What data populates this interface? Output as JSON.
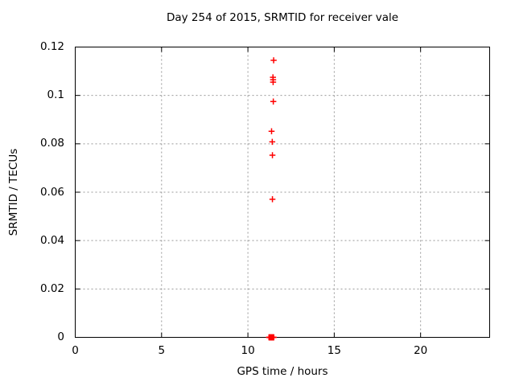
{
  "window": {
    "background": "#ffffff"
  },
  "chart_data": {
    "type": "scatter",
    "title": "Day 254 of 2015, SRMTID for receiver vale",
    "xlabel": "GPS time / hours",
    "ylabel": "SRMTID / TECUs",
    "xlim": [
      0,
      24
    ],
    "ylim": [
      0,
      0.12
    ],
    "xticks": {
      "values": [
        0,
        5,
        10,
        15,
        20
      ],
      "labels": [
        "0",
        "5",
        "10",
        "15",
        "20"
      ]
    },
    "yticks": {
      "values": [
        0,
        0.02,
        0.04,
        0.06,
        0.08,
        0.1,
        0.12
      ],
      "labels": [
        "0",
        "0.02",
        "0.04",
        "0.06",
        "0.08",
        "0.1",
        "0.12"
      ]
    },
    "grid": true,
    "legend": "none",
    "marker": "plus",
    "colors": {
      "points": "#ff0000",
      "axis": "#000000",
      "grid": "#999999"
    },
    "series": [
      {
        "name": "SRMTID",
        "points": [
          [
            11.49,
            0.1145
          ],
          [
            11.45,
            0.1075
          ],
          [
            11.46,
            0.1065
          ],
          [
            11.46,
            0.1055
          ],
          [
            11.47,
            0.0975
          ],
          [
            11.37,
            0.0852
          ],
          [
            11.41,
            0.0808
          ],
          [
            11.42,
            0.0753
          ],
          [
            11.42,
            0.0571
          ],
          [
            11.22,
            0.0
          ],
          [
            11.24,
            0.0
          ],
          [
            11.26,
            0.0
          ],
          [
            11.28,
            0.0
          ],
          [
            11.3,
            0.0
          ],
          [
            11.32,
            0.0
          ],
          [
            11.34,
            0.0
          ],
          [
            11.36,
            0.0
          ],
          [
            11.38,
            0.0
          ],
          [
            11.4,
            0.0
          ],
          [
            11.42,
            0.0
          ],
          [
            11.44,
            0.0
          ],
          [
            11.46,
            0.0
          ],
          [
            11.48,
            0.0
          ],
          [
            11.5,
            0.0
          ]
        ]
      }
    ]
  }
}
